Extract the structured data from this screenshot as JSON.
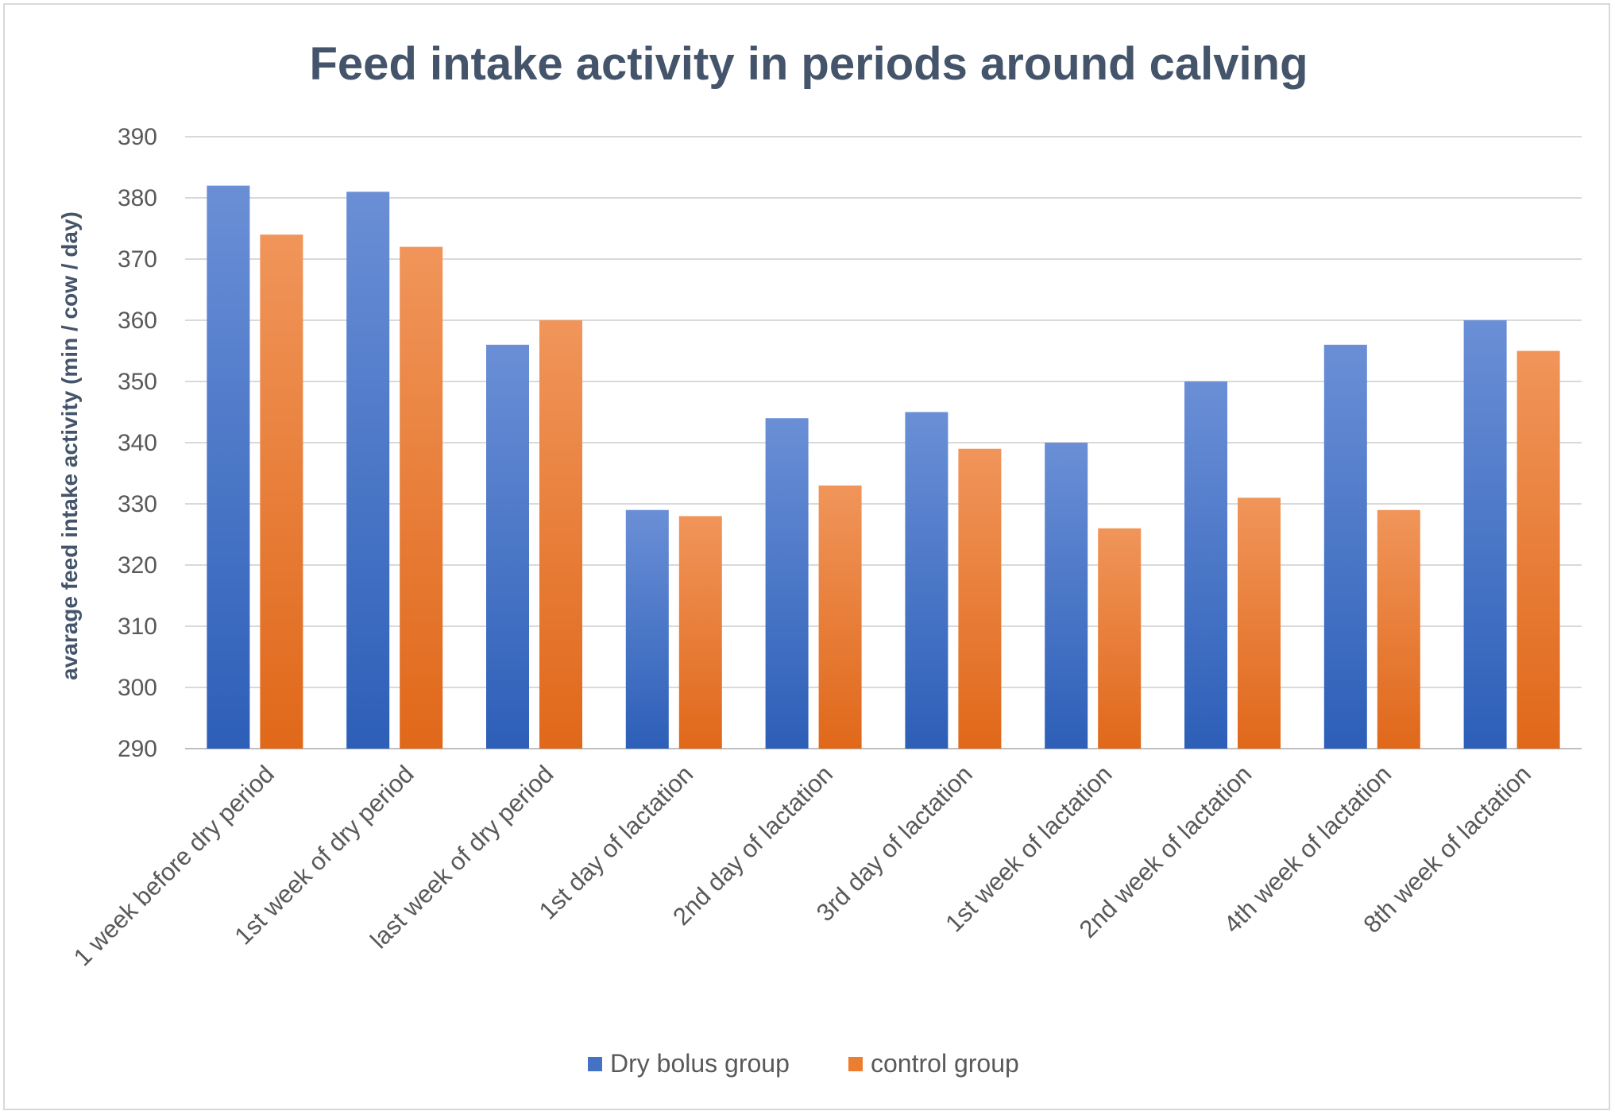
{
  "chart_data": {
    "type": "bar",
    "title": "Feed intake activity in periods around calving",
    "xlabel": "",
    "ylabel": "avarage feed intake activity (min / cow / day)",
    "ylim": [
      290,
      390
    ],
    "yticks": [
      290,
      300,
      310,
      320,
      330,
      340,
      350,
      360,
      370,
      380,
      390
    ],
    "grid": true,
    "legend_position": "bottom",
    "categories": [
      "1 week before dry period",
      "1st week of dry period",
      "last week of dry period",
      "1st day of lactation",
      "2nd day of lactation",
      "3rd day of lactation",
      "1st week of lactation",
      "2nd week of lactation",
      "4th week of lactation",
      "8th week of lactation"
    ],
    "series": [
      {
        "name": "Dry bolus group",
        "color": "#4472c4",
        "values": [
          382,
          381,
          356,
          329,
          344,
          345,
          340,
          350,
          356,
          360
        ]
      },
      {
        "name": "control group",
        "color": "#ed7d31",
        "values": [
          374,
          372,
          360,
          328,
          333,
          339,
          326,
          331,
          329,
          355
        ]
      }
    ]
  }
}
